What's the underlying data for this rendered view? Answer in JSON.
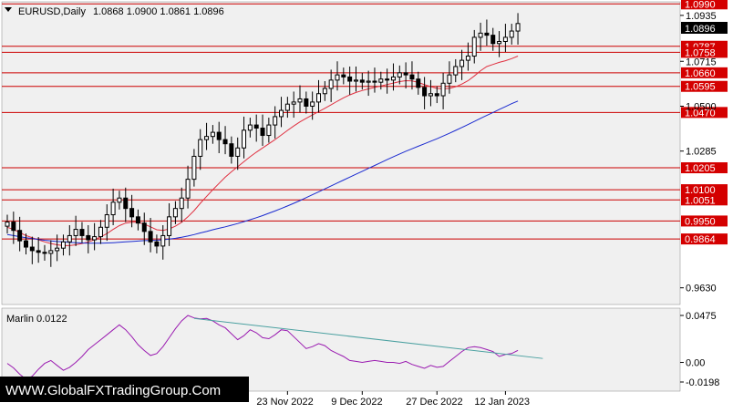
{
  "header": {
    "symbol_label": "EURUSD,Daily",
    "ohlc": "1.0868 1.0900 1.0861 1.0896",
    "current_price": "1.0896"
  },
  "watermark": "WWW.GlobalFXTradingGroup.Com",
  "colors": {
    "background": "#ffffff",
    "plot_bg": "#f0f0f0",
    "level_line": "#cc0000",
    "level_label_bg": "#d40000",
    "ma_fast": "#e03040",
    "ma_slow": "#1a2ad0",
    "osc_line": "#9a1ab0",
    "osc_trend": "#4aa0a0"
  },
  "chart_data": [
    {
      "type": "candlestick",
      "title": "EURUSD,Daily",
      "ylim": [
        0.955,
        1.1
      ],
      "price_axis_ticks": [
        "1.0935",
        "1.0715",
        "1.0500",
        "1.0285",
        "0.9630"
      ],
      "levels": [
        "1.0990",
        "1.0787",
        "1.0758",
        "1.0660",
        "1.0595",
        "1.0470",
        "1.0205",
        "1.0100",
        "1.0051",
        "0.9950",
        "0.9864"
      ],
      "current_price": "1.0896",
      "x_labels": [
        {
          "label": "23 Nov 2022",
          "bar": 45
        },
        {
          "label": "9 Dec 2022",
          "bar": 57
        },
        {
          "label": "27 Dec 2022",
          "bar": 69
        },
        {
          "label": "12 Jan 2023",
          "bar": 80
        }
      ],
      "bars": 83,
      "closes": [
        0.9945,
        0.9905,
        0.9855,
        0.9825,
        0.9808,
        0.98,
        0.9795,
        0.9808,
        0.982,
        0.985,
        0.988,
        0.991,
        0.988,
        0.986,
        0.9875,
        0.992,
        0.998,
        1.004,
        1.006,
        1.001,
        0.997,
        0.994,
        0.99,
        0.985,
        0.983,
        0.988,
        0.997,
        1.001,
        1.006,
        1.015,
        1.026,
        1.034,
        1.0355,
        1.0375,
        1.034,
        1.032,
        1.026,
        1.03,
        1.0385,
        1.041,
        1.0395,
        1.036,
        1.041,
        1.045,
        1.048,
        1.051,
        1.052,
        1.0535,
        1.05,
        1.052,
        1.056,
        1.0585,
        1.0625,
        1.065,
        1.064,
        1.062,
        1.0625,
        1.0615,
        1.062,
        1.0615,
        1.063,
        1.0625,
        1.064,
        1.066,
        1.065,
        1.063,
        1.059,
        1.055,
        1.056,
        1.055,
        1.061,
        1.065,
        1.069,
        1.072,
        1.074,
        1.083,
        1.085,
        1.084,
        1.08,
        1.081,
        1.083,
        1.086,
        1.0896
      ],
      "indicators": [
        {
          "name": "",
          "values": [
            0.992,
            0.991,
            0.9895,
            0.988,
            0.987,
            0.986,
            0.985,
            0.9842,
            0.9836,
            0.9832,
            0.9832,
            0.9836,
            0.9842,
            0.985,
            0.986,
            0.9874,
            0.989,
            0.991,
            0.9928,
            0.994,
            0.9944,
            0.9945,
            0.9935,
            0.9922,
            0.9908,
            0.9905,
            0.9912,
            0.9925,
            0.9944,
            0.997,
            1.0,
            1.0035,
            1.0068,
            1.01,
            1.013,
            1.016,
            1.0186,
            1.021,
            1.0234,
            1.0258,
            1.028,
            1.03,
            1.032,
            1.034,
            1.0362,
            1.0384,
            1.0405,
            1.0425,
            1.0442,
            1.0458,
            1.0474,
            1.049,
            1.0507,
            1.0524,
            1.054,
            1.0554,
            1.0566,
            1.0575,
            1.0583,
            1.059,
            1.0597,
            1.0604,
            1.0611,
            1.0618,
            1.0622,
            1.0621,
            1.0614,
            1.0603,
            1.0594,
            1.0585,
            1.0583,
            1.0585,
            1.0593,
            1.0606,
            1.0622,
            1.0645,
            1.067,
            1.069,
            1.07,
            1.071,
            1.0718,
            1.0728,
            1.074
          ]
        },
        {
          "name": "",
          "values": [
            0.9885,
            0.988,
            0.9875,
            0.987,
            0.9866,
            0.9862,
            0.9858,
            0.9855,
            0.9852,
            0.985,
            0.9848,
            0.9846,
            0.9845,
            0.9844,
            0.9844,
            0.9844,
            0.9845,
            0.9846,
            0.9848,
            0.985,
            0.9852,
            0.9854,
            0.9856,
            0.9857,
            0.9858,
            0.986,
            0.9863,
            0.9867,
            0.9872,
            0.9878,
            0.9885,
            0.9893,
            0.99,
            0.9908,
            0.9915,
            0.9922,
            0.993,
            0.9938,
            0.9947,
            0.9956,
            0.9966,
            0.9976,
            0.9987,
            0.9998,
            1.001,
            1.0022,
            1.0035,
            1.0048,
            1.0062,
            1.0076,
            1.009,
            1.0104,
            1.0118,
            1.0132,
            1.0146,
            1.016,
            1.0174,
            1.0188,
            1.0202,
            1.0216,
            1.023,
            1.0244,
            1.0258,
            1.0271,
            1.0284,
            1.0296,
            1.0308,
            1.032,
            1.0332,
            1.0344,
            1.0357,
            1.037,
            1.0384,
            1.0398,
            1.0412,
            1.0427,
            1.0442,
            1.0456,
            1.047,
            1.0484,
            1.0498,
            1.0512,
            1.0525
          ]
        }
      ]
    },
    {
      "type": "line",
      "title": "Marlin 0.0122",
      "ylim": [
        -0.0198,
        0.0475
      ],
      "y_ticks": [
        "0.0475",
        "0.00",
        "-0.0198"
      ],
      "series": [
        {
          "name": "Marlin",
          "values": [
            -0.001,
            -0.0055,
            -0.012,
            -0.017,
            -0.014,
            -0.007,
            -0.001,
            0.002,
            -0.003,
            -0.008,
            -0.005,
            0.0,
            0.006,
            0.013,
            0.018,
            0.023,
            0.028,
            0.033,
            0.038,
            0.033,
            0.026,
            0.018,
            0.012,
            0.007,
            0.009,
            0.016,
            0.025,
            0.034,
            0.042,
            0.0475,
            0.045,
            0.044,
            0.0445,
            0.042,
            0.038,
            0.035,
            0.029,
            0.023,
            0.027,
            0.033,
            0.03,
            0.025,
            0.024,
            0.028,
            0.033,
            0.032,
            0.026,
            0.02,
            0.014,
            0.016,
            0.019,
            0.017,
            0.012,
            0.009,
            0.006,
            0.002,
            0.001,
            0.0,
            0.001,
            0.002,
            0.001,
            0.0,
            0.0,
            -0.001,
            0.001,
            -0.002,
            -0.004,
            -0.006,
            -0.003,
            -0.005,
            -0.004,
            0.001,
            0.006,
            0.011,
            0.015,
            0.016,
            0.015,
            0.013,
            0.011,
            0.006,
            0.008,
            0.009,
            0.0122
          ]
        },
        {
          "name": "Trend",
          "from": {
            "bar": 30,
            "value": 0.0445
          },
          "to": {
            "bar": 86,
            "value": 0.004
          }
        }
      ]
    }
  ]
}
